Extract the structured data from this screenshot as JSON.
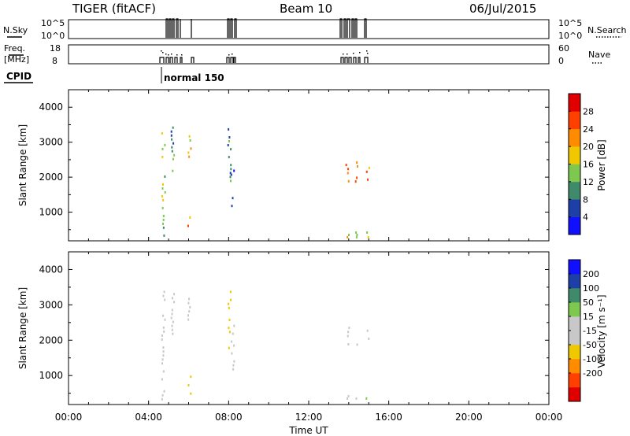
{
  "header": {
    "radar": "TIGER (fitACF)",
    "beam": "Beam 10",
    "date": "06/Jul/2015"
  },
  "meta_panels": {
    "nsky_label": "N.Sky",
    "nsky_ticks": [
      "10^5",
      "10^0"
    ],
    "nsearch_label": "N.Search",
    "nsearch_ticks": [
      "10^5",
      "10^0"
    ],
    "freq_label": "Freq.",
    "freq_unit": "[MHz]",
    "freq_ticks": [
      "18",
      "8"
    ],
    "nave_label": "Nave",
    "nave_ticks": [
      "60",
      "0"
    ],
    "cpid_label": "CPID",
    "cpid_value": "normal 150"
  },
  "colors": {
    "power_scale": [
      "#1010ff",
      "#1e3fa8",
      "#3f8a6a",
      "#7ec850",
      "#f0c800",
      "#ff8c00",
      "#ff4000",
      "#e00000"
    ],
    "velocity_scale": [
      "#e00000",
      "#ff4000",
      "#ff8c00",
      "#f0c800",
      "#c8c8c8",
      "#c8c8c8",
      "#7ec850",
      "#3f8a6a",
      "#1e3fa8",
      "#1010ff"
    ]
  },
  "chart_data": [
    {
      "type": "heatmap",
      "title": "",
      "xlabel": "",
      "ylabel": "Slant Range [km]",
      "ylim": [
        180,
        4500
      ],
      "xlim": [
        0,
        24
      ],
      "y_ticks": [
        "4000",
        "3000",
        "2000",
        "1000"
      ],
      "colorbar": {
        "label": "Power [dB]",
        "ticks": [
          "28",
          "24",
          "20",
          "16",
          "12",
          "8",
          "4"
        ],
        "range": [
          0,
          32
        ]
      },
      "echo_bands": [
        {
          "t": 4.75,
          "r0": 250,
          "r1": 3400,
          "v": 14
        },
        {
          "t": 5.2,
          "r0": 2100,
          "r1": 3450,
          "v": 12
        },
        {
          "t": 6.05,
          "r0": 400,
          "r1": 1000,
          "v": 22
        },
        {
          "t": 6.05,
          "r0": 2500,
          "r1": 3200,
          "v": 18
        },
        {
          "t": 8.05,
          "r0": 1700,
          "r1": 3400,
          "v": 10
        },
        {
          "t": 8.2,
          "r0": 1100,
          "r1": 2550,
          "v": 6
        },
        {
          "t": 13.95,
          "r0": 1800,
          "r1": 2500,
          "v": 22
        },
        {
          "t": 13.95,
          "r0": 250,
          "r1": 450,
          "v": 20
        },
        {
          "t": 14.4,
          "r0": 1800,
          "r1": 2450,
          "v": 24
        },
        {
          "t": 14.4,
          "r0": 250,
          "r1": 450,
          "v": 18
        },
        {
          "t": 14.95,
          "r0": 1850,
          "r1": 2300,
          "v": 22
        },
        {
          "t": 14.95,
          "r0": 250,
          "r1": 450,
          "v": 16
        }
      ]
    },
    {
      "type": "heatmap",
      "title": "",
      "xlabel": "Time UT",
      "ylabel": "Slant Range [km]",
      "ylim": [
        180,
        4500
      ],
      "xlim": [
        0,
        24
      ],
      "x_ticks": [
        "00:00",
        "04:00",
        "08:00",
        "12:00",
        "16:00",
        "20:00",
        "00:00"
      ],
      "y_ticks": [
        "4000",
        "3000",
        "2000",
        "1000"
      ],
      "colorbar": {
        "label": "Velocity [m s⁻¹]",
        "ticks": [
          "200",
          "100",
          "50",
          "15",
          "-15",
          "-50",
          "-100",
          "-200"
        ],
        "range": [
          -250,
          250
        ]
      },
      "echo_bands": [
        {
          "t": 4.75,
          "r0": 250,
          "r1": 3400,
          "v": 30
        },
        {
          "t": 5.2,
          "r0": 2100,
          "r1": 3450,
          "v": -40
        },
        {
          "t": 6.05,
          "r0": 400,
          "r1": 1000,
          "v": -60
        },
        {
          "t": 6.05,
          "r0": 2500,
          "r1": 3200,
          "v": 0
        },
        {
          "t": 8.05,
          "r0": 1700,
          "r1": 3400,
          "v": -80
        },
        {
          "t": 8.2,
          "r0": 1100,
          "r1": 2550,
          "v": 40
        },
        {
          "t": 13.95,
          "r0": 1800,
          "r1": 2500,
          "v": 0
        },
        {
          "t": 13.95,
          "r0": 250,
          "r1": 450,
          "v": 20
        },
        {
          "t": 14.4,
          "r0": 1800,
          "r1": 2450,
          "v": -5
        },
        {
          "t": 14.4,
          "r0": 250,
          "r1": 450,
          "v": -30
        },
        {
          "t": 14.95,
          "r0": 1850,
          "r1": 2300,
          "v": 5
        },
        {
          "t": 14.95,
          "r0": 250,
          "r1": 450,
          "v": 60
        }
      ]
    }
  ]
}
